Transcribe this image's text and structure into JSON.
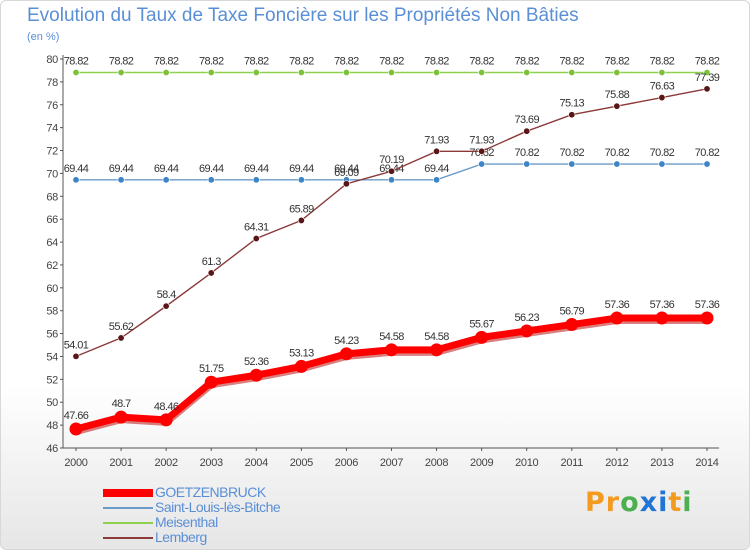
{
  "header": {
    "title": "Evolution du Taux de Taxe Foncière sur les Propriétés Non Bâties",
    "subtitle": "(en %)"
  },
  "logo": {
    "text": "Proxiti",
    "letters": [
      "P",
      "r",
      "o",
      "x",
      "i",
      "t",
      "i"
    ],
    "colors": [
      "#f39a1f",
      "#f39a1f",
      "#4caf50",
      "#1f74d6",
      "#1f74d6",
      "#f39a1f",
      "#4caf50"
    ]
  },
  "chart_data": {
    "type": "line",
    "title": "Evolution du Taux de Taxe Foncière sur les Propriétés Non Bâties",
    "ylabel": "(en %)",
    "x": [
      "2000",
      "2001",
      "2002",
      "2003",
      "2004",
      "2005",
      "2006",
      "2007",
      "2008",
      "2009",
      "2010",
      "2011",
      "2012",
      "2013",
      "2014"
    ],
    "ylim": [
      46,
      80
    ],
    "yticks": [
      46,
      48,
      50,
      52,
      54,
      56,
      58,
      60,
      62,
      64,
      66,
      68,
      70,
      72,
      74,
      76,
      78,
      80
    ],
    "grid": false,
    "legend_position": "bottom-left",
    "series": [
      {
        "name": "GOETZENBRUCK",
        "color": "#ff0000",
        "thick": true,
        "values": [
          47.66,
          48.7,
          48.46,
          51.75,
          52.36,
          53.13,
          54.23,
          54.58,
          54.58,
          55.67,
          56.23,
          56.79,
          57.36,
          57.36,
          57.36
        ],
        "labels": [
          "47.66",
          "48.7",
          "48.46",
          "51.75",
          "52.36",
          "53.13",
          "54.23",
          "54.58",
          "54.58",
          "55.67",
          "56.23",
          "56.79",
          "57.36",
          "57.36",
          "57.36"
        ]
      },
      {
        "name": "Saint-Louis-lès-Bitche",
        "color": "#6b9bc8",
        "point": "#3d85c6",
        "thick": false,
        "values": [
          69.44,
          69.44,
          69.44,
          69.44,
          69.44,
          69.44,
          69.44,
          69.44,
          69.44,
          70.82,
          70.82,
          70.82,
          70.82,
          70.82,
          70.82
        ],
        "labels": [
          "69.44",
          "69.44",
          "69.44",
          "69.44",
          "69.44",
          "69.44",
          "69.44",
          "69.44",
          "69.44",
          "70.82",
          "70.82",
          "70.82",
          "70.82",
          "70.82",
          "70.82"
        ]
      },
      {
        "name": "Meisenthal",
        "color": "#8fd14f",
        "point": "#7dc13a",
        "thick": false,
        "values": [
          78.82,
          78.82,
          78.82,
          78.82,
          78.82,
          78.82,
          78.82,
          78.82,
          78.82,
          78.82,
          78.82,
          78.82,
          78.82,
          78.82,
          78.82
        ],
        "labels": [
          "78.82",
          "78.82",
          "78.82",
          "78.82",
          "78.82",
          "78.82",
          "78.82",
          "78.82",
          "78.82",
          "78.82",
          "78.82",
          "78.82",
          "78.82",
          "78.82",
          "78.82"
        ]
      },
      {
        "name": "Lemberg",
        "color": "#8b3a3a",
        "point": "#5a1616",
        "thick": false,
        "values": [
          54.01,
          55.62,
          58.4,
          61.3,
          64.31,
          65.89,
          69.09,
          70.19,
          71.93,
          71.93,
          73.69,
          75.13,
          75.88,
          76.63,
          77.39
        ],
        "labels": [
          "54.01",
          "55.62",
          "58.4",
          "61.3",
          "64.31",
          "65.89",
          "69.09",
          "70.19",
          "71.93",
          "71.93",
          "73.69",
          "75.13",
          "75.88",
          "76.63",
          "77.39"
        ]
      }
    ]
  }
}
